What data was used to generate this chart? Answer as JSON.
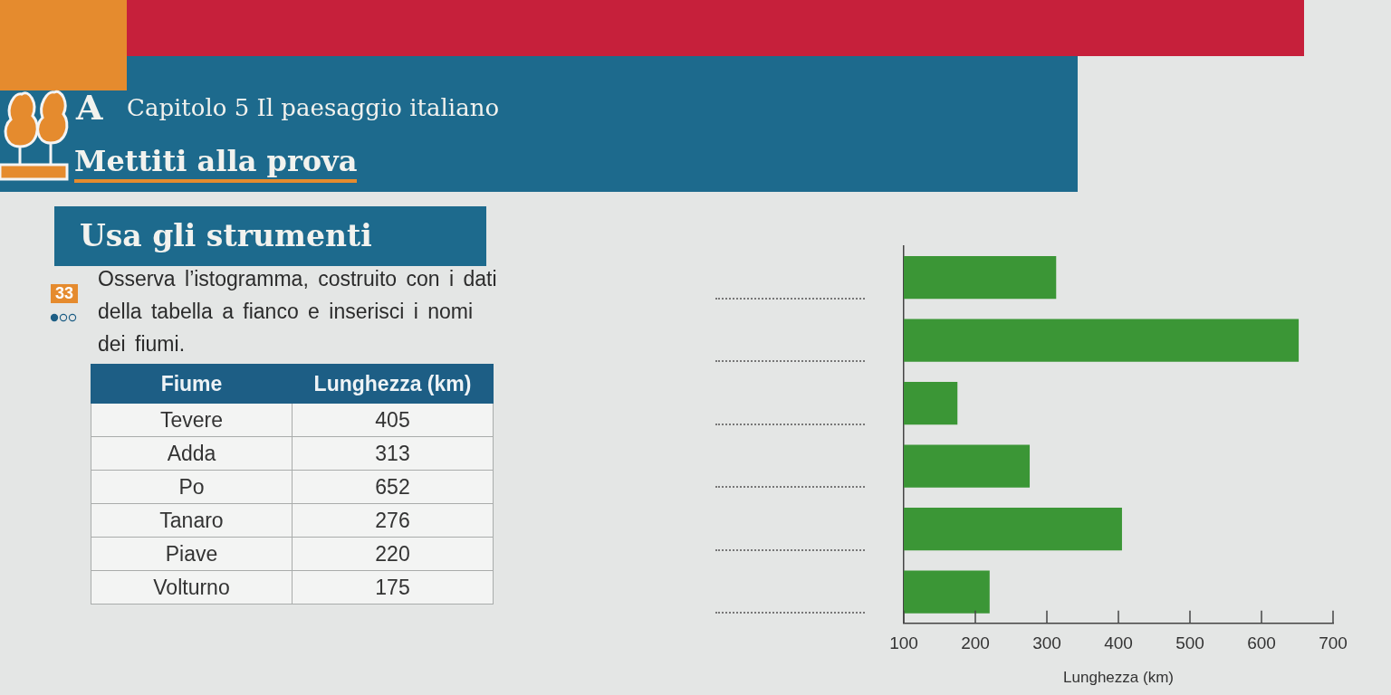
{
  "chart_data": [
    {
      "type": "other",
      "title": "Capitolo 5 Il paesaggio italiano",
      "subtitle": "Mettiti alla prova",
      "annotations": [
        "A",
        "Usa gli strumenti",
        "33",
        "Osserva l’istogramma, costruito con i dati della tabella a fianco e inserisci i nomi dei fiumi."
      ]
    },
    {
      "type": "other",
      "xlabel": "Fiume",
      "ylabel": "Lunghezza (km)",
      "categories": [
        "Tevere",
        "Adda",
        "Po",
        "Tanaro",
        "Piave",
        "Volturno"
      ],
      "values": [
        405,
        313,
        652,
        276,
        220,
        175
      ],
      "data_labels": true
    },
    {
      "type": "bar",
      "orientation": "horizontal",
      "categories": [
        null,
        null,
        null,
        null,
        null,
        null
      ],
      "values": [
        313,
        652,
        175,
        276,
        405,
        220
      ],
      "color": "#3b9636",
      "xlim": [
        100,
        700
      ],
      "xticks": [
        100,
        200,
        300,
        400,
        500,
        600,
        700
      ],
      "xlabel": "Lunghezza (km)"
    }
  ]
}
